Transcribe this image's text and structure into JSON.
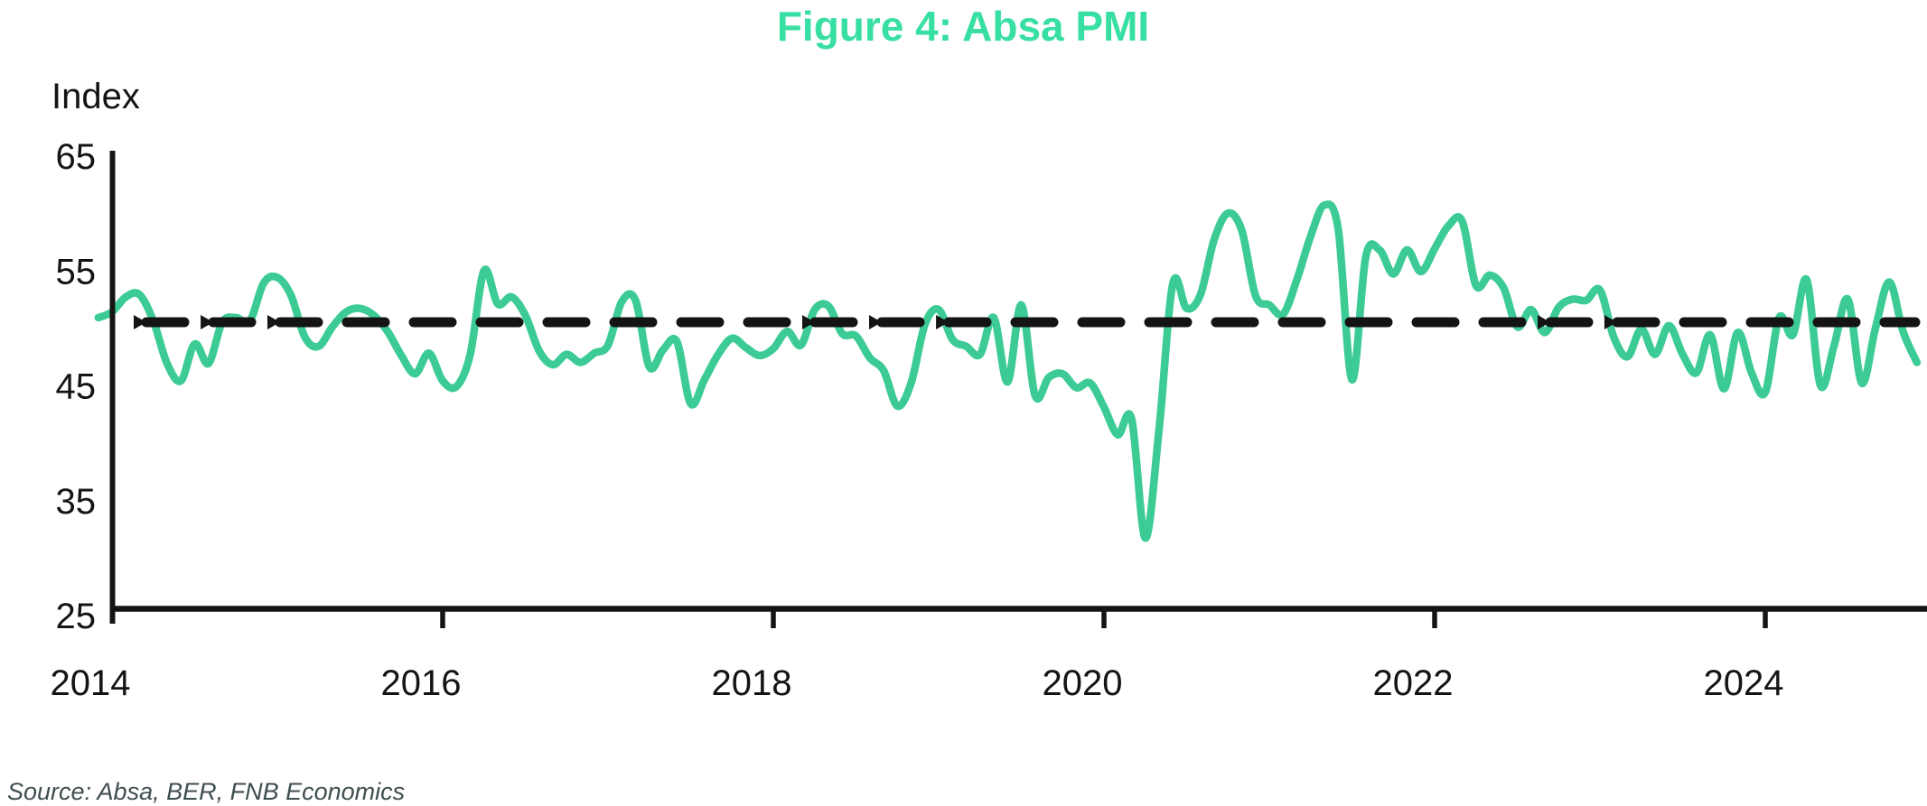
{
  "title": "Figure 4: Absa PMI",
  "y_axis_label": "Index",
  "source_note": "Source: Absa, BER, FNB Economics",
  "colors": {
    "title_green": "#38DFA2",
    "series_green": "#3CCB95",
    "axis_black": "#141414",
    "source_gray": "#3F4E50"
  },
  "chart_data": {
    "type": "line",
    "title": "Figure 4: Absa PMI",
    "xlabel": "",
    "ylabel": "Index",
    "ylim": [
      25,
      65
    ],
    "y_ticks": [
      65,
      55,
      45,
      35,
      25
    ],
    "x_ticks": [
      2014,
      2016,
      2018,
      2020,
      2022,
      2024
    ],
    "grid": false,
    "legend_position": "none",
    "reference_line": {
      "value": 50,
      "style": "dashed",
      "color": "#141414",
      "arrow_marker_years": [
        2014.131,
        2014.536,
        2014.94,
        2018.175,
        2018.579,
        2018.984,
        2022.623,
        2023.027
      ]
    },
    "series": [
      {
        "name": "Absa PMI",
        "color": "#3CCB95",
        "start_month": "2013-12",
        "frequency": "monthly",
        "values": [
          50.4,
          50.9,
          52.2,
          52.4,
          50.1,
          46.4,
          44.9,
          48.1,
          46.4,
          50.0,
          50.4,
          50.1,
          53.4,
          53.9,
          52.3,
          48.7,
          47.9,
          49.6,
          50.9,
          51.2,
          50.6,
          49.2,
          47.1,
          45.5,
          47.3,
          44.9,
          44.4,
          47.2,
          54.5,
          51.6,
          52.2,
          50.6,
          47.5,
          46.3,
          47.2,
          46.5,
          47.3,
          48.0,
          51.8,
          51.9,
          46.1,
          47.6,
          48.3,
          42.9,
          45.0,
          47.2,
          48.6,
          47.8,
          47.1,
          47.7,
          49.2,
          48.0,
          51.1,
          51.4,
          49.0,
          48.8,
          46.9,
          45.8,
          42.7,
          44.7,
          49.8,
          51.1,
          48.5,
          47.9,
          47.2,
          50.4,
          44.8,
          51.5,
          43.6,
          45.2,
          45.5,
          44.3,
          44.7,
          42.6,
          40.2,
          41.6,
          31.2,
          40.7,
          53.4,
          51.2,
          52.4,
          57.2,
          59.5,
          58.0,
          52.3,
          51.5,
          50.7,
          53.7,
          57.5,
          60.2,
          58.1,
          45.0,
          55.7,
          56.3,
          54.2,
          56.3,
          54.4,
          56.4,
          58.4,
          58.8,
          53.2,
          54.1,
          53.0,
          49.6,
          51.1,
          49.1,
          51.3,
          52.0,
          51.9,
          52.8,
          48.7,
          47.0,
          49.4,
          47.2,
          49.7,
          47.2,
          45.6,
          48.9,
          44.2,
          49.1,
          45.6,
          43.9,
          50.4,
          48.9,
          53.7,
          44.5,
          48.0,
          52.0,
          44.7,
          49.5,
          53.5,
          49.2,
          46.5
        ]
      }
    ]
  }
}
